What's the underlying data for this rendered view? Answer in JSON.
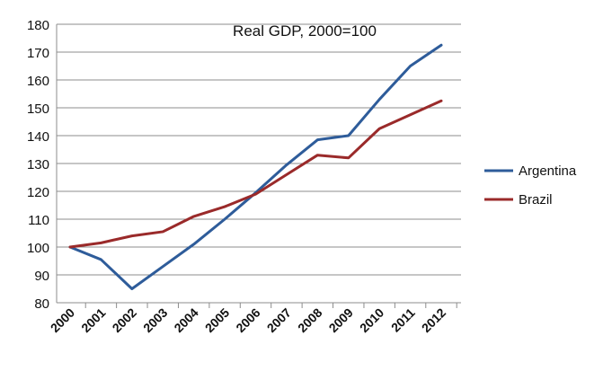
{
  "chart_data": {
    "type": "line",
    "title": "Real GDP, 2000=100",
    "xlabel": "",
    "ylabel": "",
    "categories": [
      "2000",
      "2001",
      "2002",
      "2003",
      "2004",
      "2005",
      "2006",
      "2007",
      "2008",
      "2009",
      "2010",
      "2011",
      "2012"
    ],
    "ylim": [
      80,
      180
    ],
    "yticks": [
      80,
      90,
      100,
      110,
      120,
      130,
      140,
      150,
      160,
      170,
      180
    ],
    "grid": true,
    "legend_position": "right",
    "series": [
      {
        "name": "Argentina",
        "color": "#2E5C9A",
        "values": [
          100,
          95.5,
          85,
          93,
          101,
          110,
          119.5,
          129.5,
          138.5,
          140,
          153,
          165,
          172.5
        ]
      },
      {
        "name": "Brazil",
        "color": "#9A2A2A",
        "values": [
          100,
          101.5,
          104,
          105.5,
          111,
          114.5,
          119,
          126,
          133,
          132,
          142.5,
          147.5,
          152.5
        ]
      }
    ]
  }
}
